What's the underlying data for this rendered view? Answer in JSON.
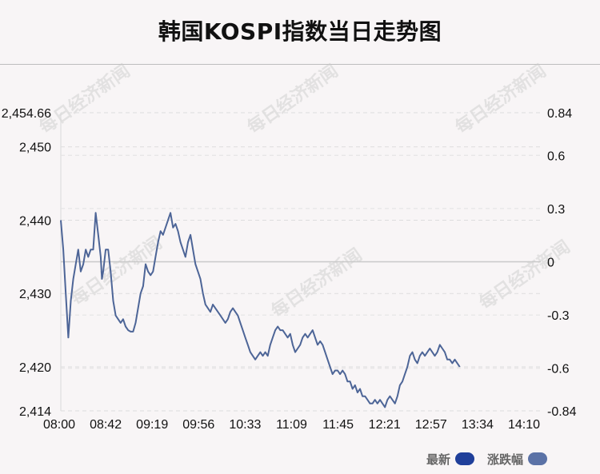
{
  "title": "韩国KOSPI指数当日走势图",
  "watermark": "每日经济新闻",
  "legend": {
    "items": [
      {
        "label": "最新",
        "color": "#1f3f9a"
      },
      {
        "label": "涨跌幅",
        "color": "#5b72a6"
      }
    ]
  },
  "chart_data": {
    "type": "line",
    "line_color": "#4d6597",
    "x_ticks": [
      "08:00",
      "08:42",
      "09:19",
      "09:56",
      "10:33",
      "11:09",
      "11:45",
      "12:21",
      "12:57",
      "13:34",
      "14:10"
    ],
    "y_left_ticks": [
      {
        "value": 2454.66,
        "label": "2,454.66"
      },
      {
        "value": 2450,
        "label": "2,450"
      },
      {
        "value": 2440,
        "label": "2,440"
      },
      {
        "value": 2430,
        "label": "2,430"
      },
      {
        "value": 2420,
        "label": "2,420"
      },
      {
        "value": 2414,
        "label": "2,414"
      }
    ],
    "y_right_ticks": [
      {
        "value": 0.84,
        "label": "0.84"
      },
      {
        "value": 0.6,
        "label": "0.6"
      },
      {
        "value": 0.3,
        "label": "0.3"
      },
      {
        "value": 0,
        "label": "0"
      },
      {
        "value": -0.3,
        "label": "-0.3"
      },
      {
        "value": -0.6,
        "label": "-0.6"
      },
      {
        "value": -0.84,
        "label": "-0.84"
      }
    ],
    "ylim_left": [
      2414,
      2454.66
    ],
    "ylim_right": [
      -0.84,
      0.84
    ],
    "x_range_minutes": [
      0,
      385
    ],
    "series": [
      {
        "values": [
          [
            0,
            2440
          ],
          [
            2,
            2436
          ],
          [
            4,
            2430
          ],
          [
            5,
            2427
          ],
          [
            6,
            2424
          ],
          [
            8,
            2429
          ],
          [
            10,
            2432
          ],
          [
            12,
            2434
          ],
          [
            14,
            2436
          ],
          [
            16,
            2433
          ],
          [
            18,
            2434
          ],
          [
            20,
            2436
          ],
          [
            22,
            2435
          ],
          [
            24,
            2436
          ],
          [
            26,
            2436
          ],
          [
            28,
            2441
          ],
          [
            30,
            2438
          ],
          [
            32,
            2435
          ],
          [
            33,
            2432
          ],
          [
            34,
            2433
          ],
          [
            36,
            2436
          ],
          [
            38,
            2436
          ],
          [
            40,
            2433
          ],
          [
            42,
            2429
          ],
          [
            44,
            2427
          ],
          [
            46,
            2426.5
          ],
          [
            48,
            2426
          ],
          [
            50,
            2426.5
          ],
          [
            52,
            2425.5
          ],
          [
            54,
            2425
          ],
          [
            56,
            2424.8
          ],
          [
            58,
            2424.8
          ],
          [
            60,
            2426
          ],
          [
            62,
            2428
          ],
          [
            64,
            2430
          ],
          [
            66,
            2431
          ],
          [
            68,
            2434
          ],
          [
            70,
            2433
          ],
          [
            72,
            2432.5
          ],
          [
            74,
            2433
          ],
          [
            76,
            2435
          ],
          [
            78,
            2437
          ],
          [
            80,
            2438.5
          ],
          [
            82,
            2438
          ],
          [
            84,
            2439
          ],
          [
            86,
            2440
          ],
          [
            88,
            2441
          ],
          [
            90,
            2439
          ],
          [
            92,
            2439.5
          ],
          [
            94,
            2438.5
          ],
          [
            96,
            2437
          ],
          [
            98,
            2436
          ],
          [
            100,
            2435
          ],
          [
            102,
            2437
          ],
          [
            104,
            2438
          ],
          [
            106,
            2436
          ],
          [
            108,
            2434
          ],
          [
            110,
            2433
          ],
          [
            112,
            2432
          ],
          [
            114,
            2430
          ],
          [
            116,
            2428.5
          ],
          [
            118,
            2428
          ],
          [
            120,
            2427.5
          ],
          [
            122,
            2428.5
          ],
          [
            124,
            2428
          ],
          [
            126,
            2427.5
          ],
          [
            128,
            2427
          ],
          [
            130,
            2426.5
          ],
          [
            132,
            2426
          ],
          [
            134,
            2426.5
          ],
          [
            136,
            2427.5
          ],
          [
            138,
            2428
          ],
          [
            140,
            2427.5
          ],
          [
            142,
            2427
          ],
          [
            144,
            2426
          ],
          [
            146,
            2425
          ],
          [
            148,
            2424
          ],
          [
            150,
            2423
          ],
          [
            152,
            2422
          ],
          [
            154,
            2421.5
          ],
          [
            156,
            2421
          ],
          [
            158,
            2421.5
          ],
          [
            160,
            2422
          ],
          [
            162,
            2421.5
          ],
          [
            164,
            2422
          ],
          [
            166,
            2421.5
          ],
          [
            168,
            2423
          ],
          [
            170,
            2424
          ],
          [
            172,
            2425
          ],
          [
            174,
            2425.5
          ],
          [
            176,
            2425
          ],
          [
            178,
            2425
          ],
          [
            180,
            2424.5
          ],
          [
            182,
            2424
          ],
          [
            184,
            2424.5
          ],
          [
            186,
            2423
          ],
          [
            188,
            2422
          ],
          [
            190,
            2422.5
          ],
          [
            192,
            2423
          ],
          [
            194,
            2424
          ],
          [
            196,
            2424.5
          ],
          [
            198,
            2424
          ],
          [
            200,
            2424.5
          ],
          [
            202,
            2425
          ],
          [
            204,
            2424
          ],
          [
            206,
            2423
          ],
          [
            208,
            2423.5
          ],
          [
            210,
            2423
          ],
          [
            212,
            2422
          ],
          [
            214,
            2421
          ],
          [
            216,
            2420
          ],
          [
            218,
            2419
          ],
          [
            220,
            2419.5
          ],
          [
            222,
            2419.5
          ],
          [
            224,
            2419
          ],
          [
            226,
            2419.5
          ],
          [
            228,
            2419
          ],
          [
            230,
            2418
          ],
          [
            232,
            2418
          ],
          [
            234,
            2417
          ],
          [
            236,
            2417.5
          ],
          [
            238,
            2416.5
          ],
          [
            240,
            2417
          ],
          [
            242,
            2416
          ],
          [
            244,
            2416
          ],
          [
            246,
            2415.5
          ],
          [
            248,
            2415
          ],
          [
            250,
            2415
          ],
          [
            252,
            2415.5
          ],
          [
            254,
            2415
          ],
          [
            256,
            2415.5
          ],
          [
            258,
            2415
          ],
          [
            260,
            2414.5
          ],
          [
            262,
            2415.5
          ],
          [
            264,
            2416
          ],
          [
            266,
            2415.5
          ],
          [
            268,
            2415
          ],
          [
            270,
            2416
          ],
          [
            272,
            2417.5
          ],
          [
            274,
            2418
          ],
          [
            276,
            2419
          ],
          [
            278,
            2420
          ],
          [
            280,
            2421.5
          ],
          [
            282,
            2422
          ],
          [
            284,
            2421
          ],
          [
            286,
            2420.5
          ],
          [
            288,
            2421.5
          ],
          [
            290,
            2422
          ],
          [
            292,
            2421.5
          ],
          [
            294,
            2422
          ],
          [
            296,
            2422.5
          ],
          [
            298,
            2422
          ],
          [
            300,
            2421.5
          ],
          [
            302,
            2422
          ],
          [
            304,
            2423
          ],
          [
            306,
            2422.5
          ],
          [
            308,
            2422
          ],
          [
            310,
            2421
          ],
          [
            312,
            2421
          ],
          [
            314,
            2420.5
          ],
          [
            316,
            2421
          ],
          [
            318,
            2420.5
          ],
          [
            320,
            2420
          ]
        ]
      }
    ],
    "grid": true
  }
}
